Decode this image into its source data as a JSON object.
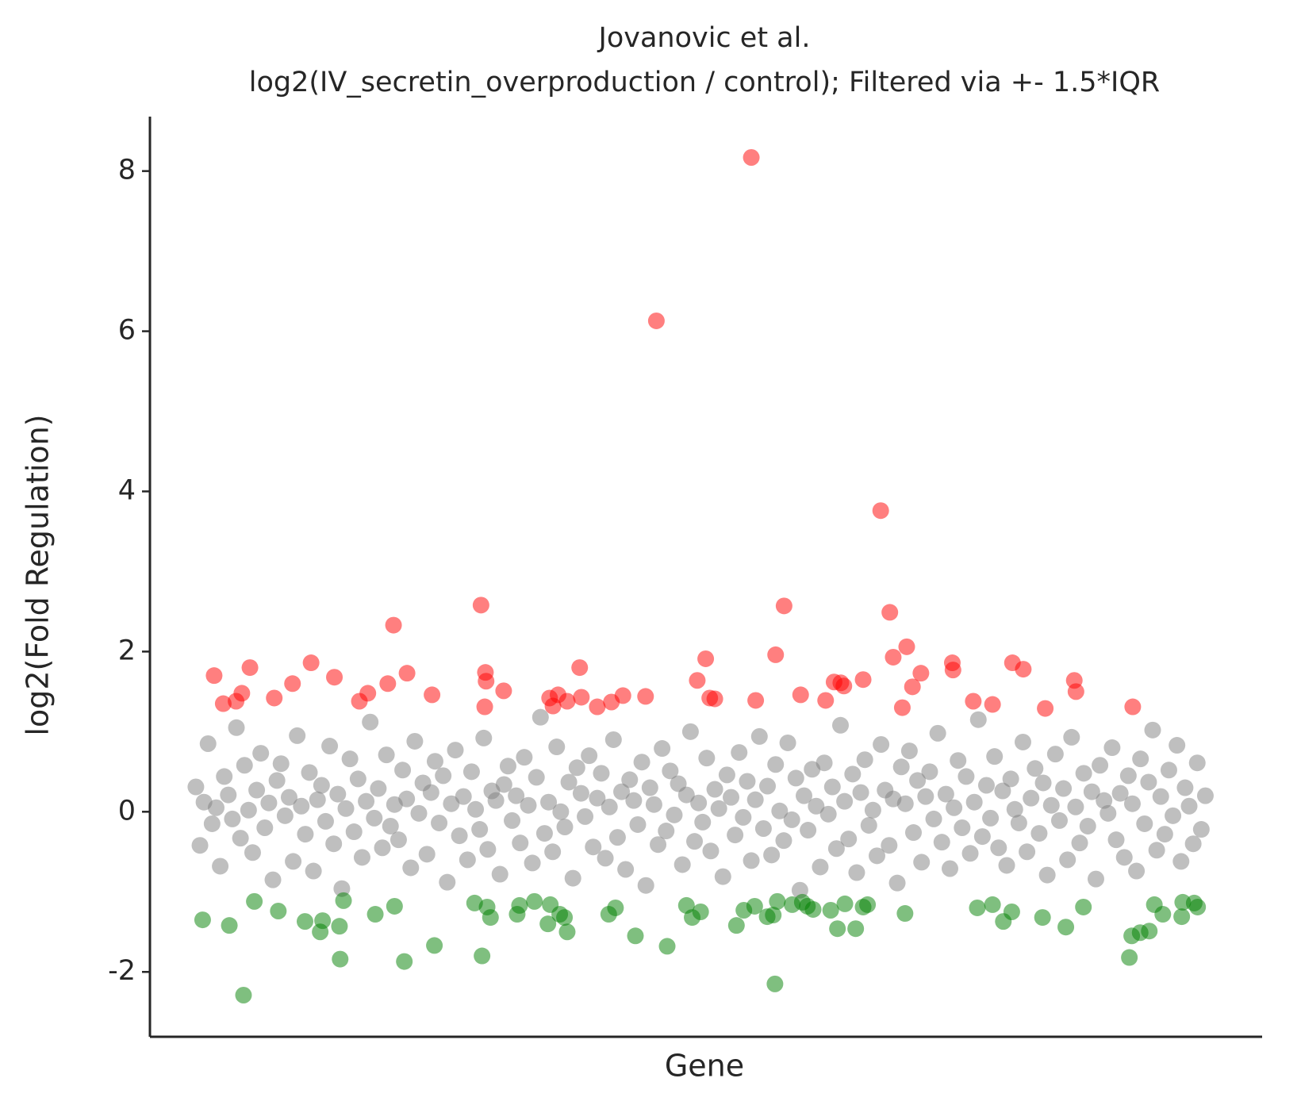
{
  "chart_data": {
    "type": "scatter",
    "title": "Jovanovic et al.",
    "subtitle": "log2(IV_secretin_overproduction / control); Filtered via +- 1.5*IQR",
    "xlabel": "Gene",
    "ylabel": "log2(Fold Regulation)",
    "xlim": [
      -136,
      3156
    ],
    "ylim": [
      -2.81,
      8.68
    ],
    "yticks": [
      -2,
      0,
      2,
      4,
      6,
      8
    ],
    "series": [
      {
        "color": "#808080",
        "x": [
          0,
          12,
          24,
          36,
          48,
          60,
          72,
          84,
          96,
          108,
          120,
          132,
          144,
          156,
          168,
          180,
          192,
          204,
          216,
          228,
          240,
          252,
          264,
          276,
          288,
          300,
          312,
          324,
          336,
          348,
          360,
          372,
          384,
          396,
          408,
          420,
          432,
          444,
          456,
          468,
          480,
          492,
          504,
          516,
          528,
          540,
          552,
          564,
          576,
          588,
          600,
          612,
          624,
          636,
          648,
          660,
          672,
          684,
          696,
          708,
          720,
          732,
          744,
          756,
          768,
          780,
          792,
          804,
          816,
          828,
          840,
          852,
          864,
          876,
          888,
          900,
          912,
          924,
          936,
          948,
          960,
          972,
          984,
          996,
          1008,
          1020,
          1032,
          1044,
          1056,
          1068,
          1080,
          1092,
          1104,
          1116,
          1128,
          1140,
          1152,
          1164,
          1176,
          1188,
          1200,
          1212,
          1224,
          1236,
          1248,
          1260,
          1272,
          1284,
          1296,
          1308,
          1320,
          1332,
          1344,
          1356,
          1368,
          1380,
          1392,
          1404,
          1416,
          1428,
          1440,
          1452,
          1464,
          1476,
          1488,
          1500,
          1512,
          1524,
          1536,
          1548,
          1560,
          1572,
          1584,
          1596,
          1608,
          1620,
          1632,
          1644,
          1656,
          1668,
          1680,
          1692,
          1704,
          1716,
          1728,
          1740,
          1752,
          1764,
          1776,
          1788,
          1800,
          1812,
          1824,
          1836,
          1848,
          1860,
          1872,
          1884,
          1896,
          1908,
          1920,
          1932,
          1944,
          1956,
          1968,
          1980,
          1992,
          2004,
          2016,
          2028,
          2040,
          2052,
          2064,
          2076,
          2088,
          2100,
          2112,
          2124,
          2136,
          2148,
          2160,
          2172,
          2184,
          2196,
          2208,
          2220,
          2232,
          2244,
          2256,
          2268,
          2280,
          2292,
          2304,
          2316,
          2328,
          2340,
          2352,
          2364,
          2376,
          2388,
          2400,
          2412,
          2424,
          2436,
          2448,
          2460,
          2472,
          2484,
          2496,
          2508,
          2520,
          2532,
          2544,
          2556,
          2568,
          2580,
          2592,
          2604,
          2616,
          2628,
          2640,
          2652,
          2664,
          2676,
          2688,
          2700,
          2712,
          2724,
          2736,
          2748,
          2760,
          2772,
          2784,
          2796,
          2808,
          2820,
          2832,
          2844,
          2856,
          2868,
          2880,
          2892,
          2904,
          2916,
          2928,
          2940,
          2952,
          2964,
          2976,
          2988
        ],
        "values": [
          0.31,
          -0.42,
          0.12,
          0.85,
          -0.15,
          0.05,
          -0.68,
          0.44,
          0.21,
          -0.09,
          1.05,
          -0.33,
          0.58,
          0.02,
          -0.51,
          0.27,
          0.73,
          -0.2,
          0.11,
          -0.85,
          0.39,
          0.6,
          -0.05,
          0.18,
          -0.62,
          0.95,
          0.07,
          -0.28,
          0.49,
          -0.74,
          0.15,
          0.33,
          -0.12,
          0.82,
          -0.4,
          0.22,
          -0.96,
          0.04,
          0.66,
          -0.25,
          0.41,
          -0.57,
          0.13,
          1.12,
          -0.08,
          0.29,
          -0.45,
          0.71,
          -0.18,
          0.09,
          -0.35,
          0.52,
          0.16,
          -0.7,
          0.88,
          -0.02,
          0.36,
          -0.53,
          0.24,
          0.63,
          -0.14,
          0.45,
          -0.88,
          0.1,
          0.77,
          -0.3,
          0.19,
          -0.6,
          0.5,
          0.03,
          -0.22,
          0.92,
          -0.47,
          0.26,
          0.14,
          -0.78,
          0.34,
          0.57,
          -0.11,
          0.2,
          -0.39,
          0.68,
          0.08,
          -0.64,
          0.43,
          1.18,
          -0.27,
          0.12,
          -0.5,
          0.81,
          0.0,
          -0.19,
          0.37,
          -0.83,
          0.55,
          0.23,
          -0.06,
          0.7,
          -0.44,
          0.17,
          0.48,
          -0.58,
          0.06,
          0.9,
          -0.32,
          0.25,
          -0.72,
          0.4,
          0.14,
          -0.16,
          0.62,
          -0.92,
          0.3,
          0.09,
          -0.41,
          0.79,
          -0.24,
          0.51,
          -0.04,
          0.35,
          -0.66,
          0.21,
          1.0,
          -0.37,
          0.11,
          -0.13,
          0.67,
          -0.49,
          0.28,
          0.04,
          -0.81,
          0.46,
          0.18,
          -0.29,
          0.74,
          -0.07,
          0.38,
          -0.61,
          0.15,
          0.94,
          -0.21,
          0.32,
          -0.54,
          0.59,
          0.01,
          -0.36,
          0.86,
          -0.1,
          0.42,
          -0.98,
          0.2,
          -0.23,
          0.53,
          0.07,
          -0.69,
          0.61,
          -0.03,
          0.31,
          -0.46,
          1.08,
          0.13,
          -0.34,
          0.47,
          -0.76,
          0.24,
          0.65,
          -0.17,
          0.02,
          -0.55,
          0.84,
          0.27,
          -0.42,
          0.16,
          -0.89,
          0.56,
          0.1,
          0.76,
          -0.26,
          0.39,
          -0.63,
          0.19,
          0.5,
          -0.09,
          0.98,
          -0.38,
          0.22,
          -0.71,
          0.05,
          0.64,
          -0.2,
          0.44,
          -0.52,
          0.12,
          1.15,
          -0.31,
          0.33,
          -0.08,
          0.69,
          -0.45,
          0.26,
          -0.67,
          0.41,
          0.03,
          -0.14,
          0.87,
          -0.5,
          0.17,
          0.54,
          -0.27,
          0.36,
          -0.79,
          0.08,
          0.72,
          -0.11,
          0.29,
          -0.6,
          0.93,
          0.06,
          -0.39,
          0.48,
          -0.18,
          0.25,
          -0.84,
          0.58,
          0.14,
          -0.02,
          0.8,
          -0.35,
          0.23,
          -0.57,
          0.45,
          0.1,
          -0.74,
          0.66,
          -0.15,
          0.37,
          1.02,
          -0.48,
          0.19,
          -0.28,
          0.52,
          -0.05,
          0.83,
          -0.62,
          0.3,
          0.07,
          -0.4,
          0.61,
          -0.22,
          0.2
        ]
      },
      {
        "color": "#ff0000",
        "x": [
          54,
          81,
          119,
          136,
          160,
          232,
          286,
          341,
          410,
          484,
          509,
          568,
          585,
          625,
          699,
          844,
          857,
          859,
          855,
          911,
          1047,
          1057,
          1072,
          1099,
          1136,
          1141,
          1188,
          1230,
          1264,
          1331,
          1363,
          1484,
          1509,
          1521,
          1536,
          1644,
          1657,
          1716,
          1741,
          1790,
          1864,
          1889,
          1909,
          1918,
          1975,
          2027,
          2054,
          2064,
          2091,
          2104,
          2121,
          2146,
          2239,
          2241,
          2301,
          2358,
          2417,
          2449,
          2514,
          2600,
          2605,
          2773
        ],
        "values": [
          1.7,
          1.35,
          1.38,
          1.48,
          1.8,
          1.42,
          1.6,
          1.86,
          1.68,
          1.38,
          1.48,
          1.6,
          2.33,
          1.73,
          1.46,
          2.58,
          1.74,
          1.63,
          1.31,
          1.51,
          1.42,
          1.32,
          1.46,
          1.38,
          1.8,
          1.43,
          1.31,
          1.37,
          1.45,
          1.44,
          6.13,
          1.64,
          1.91,
          1.42,
          1.41,
          8.17,
          1.39,
          1.96,
          2.57,
          1.46,
          1.39,
          1.62,
          1.61,
          1.57,
          1.65,
          3.76,
          2.49,
          1.93,
          1.3,
          2.06,
          1.56,
          1.73,
          1.86,
          1.77,
          1.38,
          1.34,
          1.86,
          1.78,
          1.29,
          1.64,
          1.5,
          1.31
        ]
      },
      {
        "color": "#008000",
        "x": [
          20,
          99,
          141,
          173,
          244,
          323,
          368,
          375,
          425,
          427,
          437,
          531,
          588,
          617,
          706,
          825,
          847,
          862,
          872,
          951,
          958,
          1002,
          1042,
          1049,
          1077,
          1091,
          1099,
          1222,
          1242,
          1301,
          1395,
          1452,
          1469,
          1494,
          1600,
          1622,
          1654,
          1691,
          1709,
          1714,
          1721,
          1765,
          1795,
          1810,
          1827,
          1879,
          1899,
          1921,
          1953,
          1975,
          1988,
          2099,
          2313,
          2358,
          2390,
          2415,
          2506,
          2575,
          2627,
          2763,
          2770,
          2795,
          2822,
          2837,
          2862,
          2918,
          2921,
          2955,
          2965
        ],
        "values": [
          -1.35,
          -1.42,
          -2.29,
          -1.12,
          -1.24,
          -1.37,
          -1.5,
          -1.36,
          -1.43,
          -1.84,
          -1.11,
          -1.28,
          -1.18,
          -1.87,
          -1.67,
          -1.14,
          -1.8,
          -1.19,
          -1.32,
          -1.28,
          -1.17,
          -1.12,
          -1.4,
          -1.16,
          -1.28,
          -1.32,
          -1.5,
          -1.28,
          -1.2,
          -1.55,
          -1.68,
          -1.17,
          -1.32,
          -1.25,
          -1.42,
          -1.23,
          -1.18,
          -1.31,
          -1.29,
          -2.15,
          -1.12,
          -1.16,
          -1.13,
          -1.18,
          -1.22,
          -1.23,
          -1.46,
          -1.15,
          -1.46,
          -1.19,
          -1.16,
          -1.27,
          -1.2,
          -1.16,
          -1.37,
          -1.25,
          -1.32,
          -1.44,
          -1.19,
          -1.82,
          -1.55,
          -1.51,
          -1.49,
          -1.16,
          -1.28,
          -1.31,
          -1.13,
          -1.14,
          -1.19
        ]
      }
    ]
  }
}
